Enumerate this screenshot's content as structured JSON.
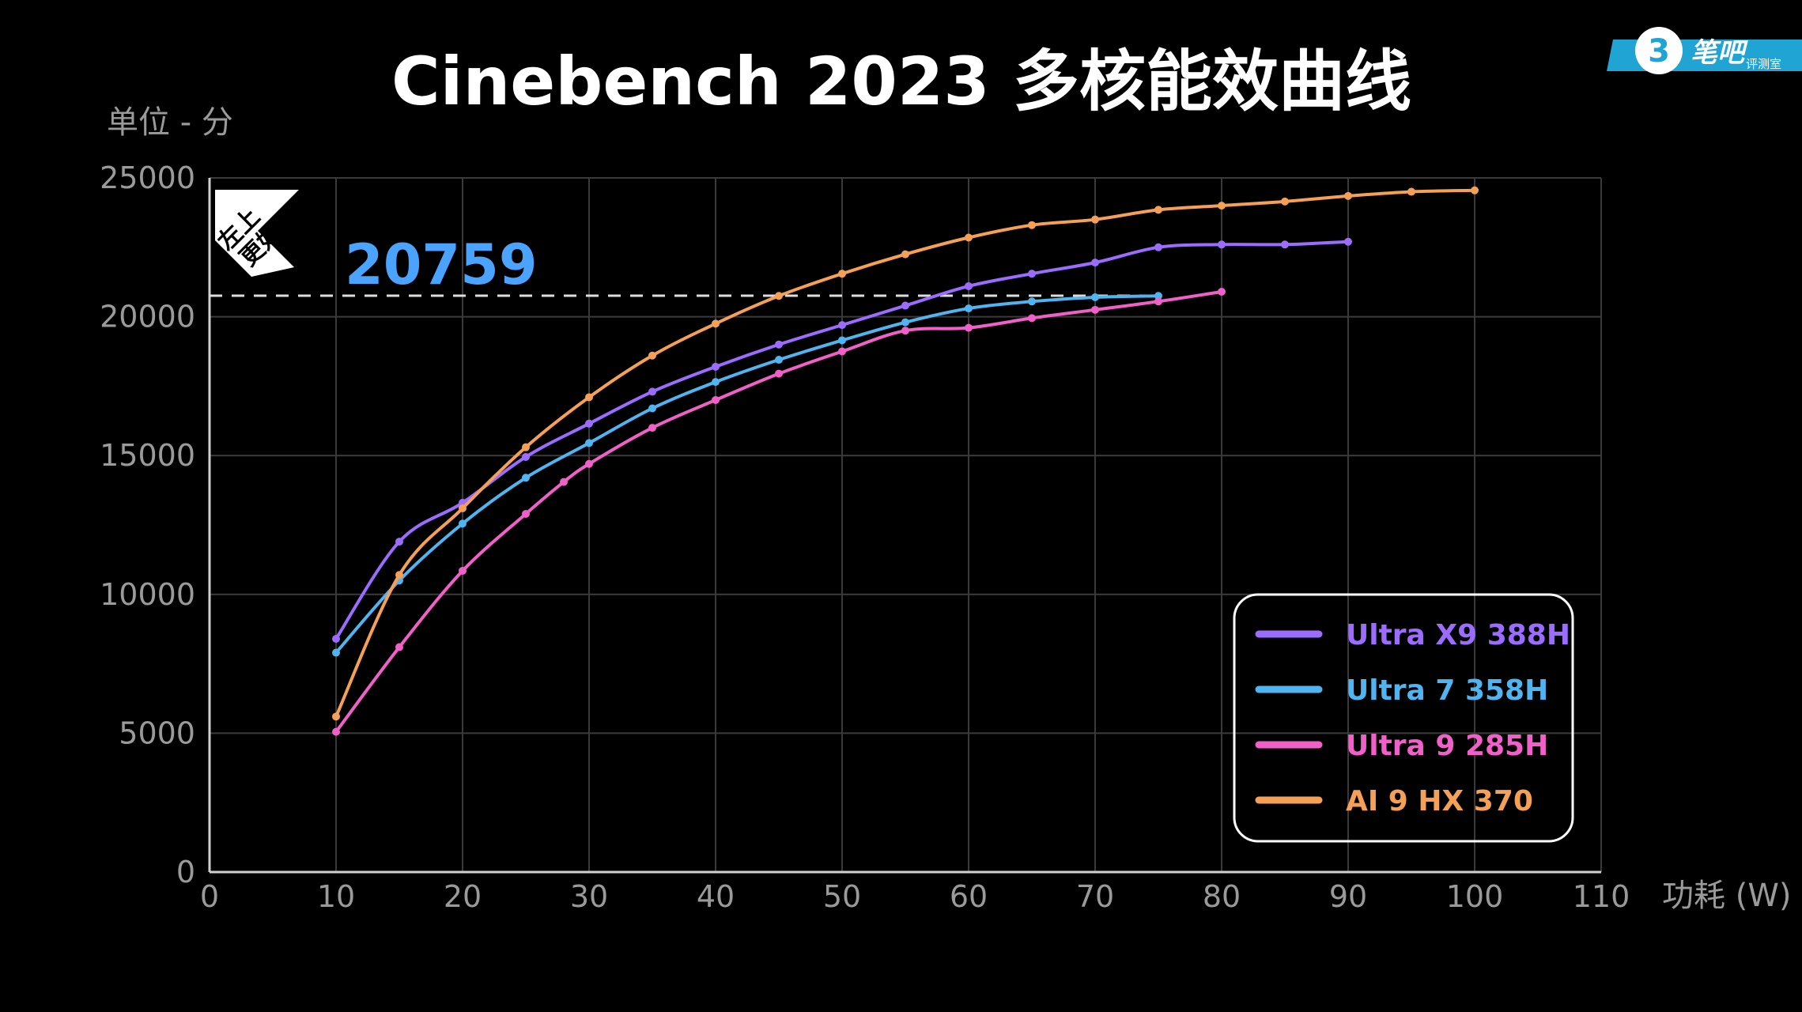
{
  "chart_data": {
    "type": "line",
    "title": "Cinebench 2023 多核能效曲线",
    "ylabel": "单位 - 分",
    "xlabel": "功耗 (W)",
    "xlim": [
      0,
      110
    ],
    "ylim": [
      0,
      25000
    ],
    "x_ticks": [
      "0",
      "10",
      "20",
      "30",
      "40",
      "50",
      "60",
      "70",
      "80",
      "90",
      "100",
      "110"
    ],
    "y_ticks": [
      "0",
      "5000",
      "10000",
      "15000",
      "20000",
      "25000"
    ],
    "grid": true,
    "legend_position": "bottom-right",
    "reference_line": {
      "value": 20759,
      "label": "20759",
      "color": "#4aa3ff"
    },
    "badge": {
      "line1": "左上",
      "line2": "更好"
    },
    "series": [
      {
        "name": "Ultra X9 388H",
        "color": "#9b6cff",
        "points": [
          [
            10,
            8400
          ],
          [
            15,
            11900
          ],
          [
            20,
            13300
          ],
          [
            25,
            14950
          ],
          [
            30,
            16150
          ],
          [
            35,
            17300
          ],
          [
            40,
            18200
          ],
          [
            45,
            19000
          ],
          [
            50,
            19700
          ],
          [
            55,
            20400
          ],
          [
            60,
            21100
          ],
          [
            65,
            21550
          ],
          [
            70,
            21950
          ],
          [
            75,
            22500
          ],
          [
            80,
            22600
          ],
          [
            85,
            22600
          ],
          [
            90,
            22700
          ]
        ]
      },
      {
        "name": "Ultra 7 358H",
        "color": "#4fb4f0",
        "points": [
          [
            10,
            7900
          ],
          [
            15,
            10500
          ],
          [
            20,
            12550
          ],
          [
            25,
            14200
          ],
          [
            30,
            15450
          ],
          [
            35,
            16700
          ],
          [
            40,
            17650
          ],
          [
            45,
            18450
          ],
          [
            50,
            19150
          ],
          [
            55,
            19800
          ],
          [
            60,
            20300
          ],
          [
            65,
            20550
          ],
          [
            70,
            20700
          ],
          [
            75,
            20750
          ]
        ]
      },
      {
        "name": "Ultra 9 285H",
        "color": "#f060c8",
        "points": [
          [
            10,
            5050
          ],
          [
            15,
            8100
          ],
          [
            20,
            10850
          ],
          [
            25,
            12900
          ],
          [
            28,
            14050
          ],
          [
            30,
            14700
          ],
          [
            35,
            16000
          ],
          [
            40,
            17000
          ],
          [
            45,
            17950
          ],
          [
            50,
            18750
          ],
          [
            55,
            19500
          ],
          [
            60,
            19600
          ],
          [
            65,
            19950
          ],
          [
            70,
            20250
          ],
          [
            75,
            20550
          ],
          [
            80,
            20900
          ]
        ]
      },
      {
        "name": "AI 9 HX 370",
        "color": "#f5a056",
        "points": [
          [
            10,
            5600
          ],
          [
            15,
            10700
          ],
          [
            20,
            13100
          ],
          [
            25,
            15300
          ],
          [
            30,
            17100
          ],
          [
            35,
            18600
          ],
          [
            40,
            19750
          ],
          [
            45,
            20750
          ],
          [
            50,
            21550
          ],
          [
            55,
            22250
          ],
          [
            60,
            22850
          ],
          [
            65,
            23300
          ],
          [
            70,
            23500
          ],
          [
            75,
            23850
          ],
          [
            80,
            24000
          ],
          [
            85,
            24150
          ],
          [
            90,
            24350
          ],
          [
            95,
            24500
          ],
          [
            100,
            24550
          ]
        ]
      }
    ]
  },
  "watermark": {
    "text": "笔吧",
    "sub": "评测室",
    "icon": "number-3-icon"
  }
}
